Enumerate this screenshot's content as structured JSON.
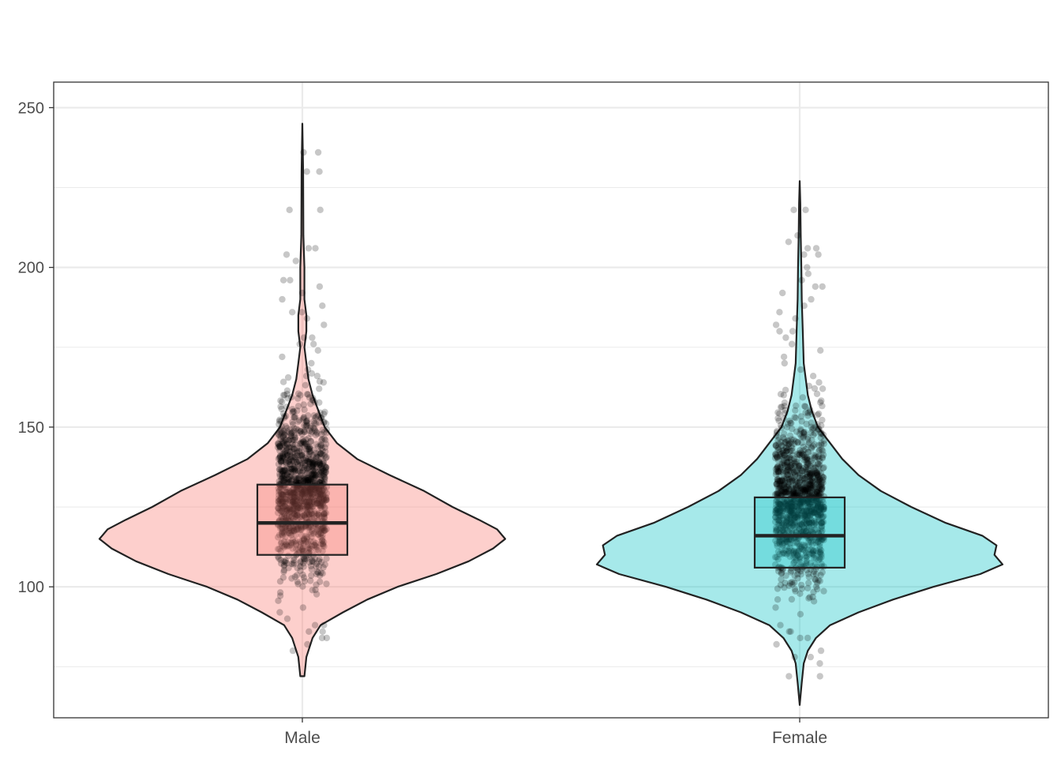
{
  "chart_data": {
    "type": "violin",
    "title": "",
    "xlabel": "",
    "ylabel": "",
    "ylim": [
      59,
      258
    ],
    "yticks": [
      100,
      150,
      200,
      250
    ],
    "grid": true,
    "legend": "none",
    "categories": [
      "Male",
      "Female"
    ],
    "groups": [
      {
        "name": "Male",
        "fill": "#f8766d",
        "range": [
          72,
          245
        ],
        "box": {
          "q1": 110,
          "median": 120,
          "q3": 132
        },
        "density": [
          [
            72,
            0.01
          ],
          [
            78,
            0.02
          ],
          [
            84,
            0.05
          ],
          [
            88,
            0.09
          ],
          [
            92,
            0.2
          ],
          [
            96,
            0.32
          ],
          [
            100,
            0.47
          ],
          [
            104,
            0.66
          ],
          [
            108,
            0.82
          ],
          [
            112,
            0.94
          ],
          [
            115,
            1.0
          ],
          [
            118,
            0.96
          ],
          [
            121,
            0.87
          ],
          [
            125,
            0.74
          ],
          [
            130,
            0.6
          ],
          [
            135,
            0.43
          ],
          [
            140,
            0.27
          ],
          [
            145,
            0.17
          ],
          [
            150,
            0.11
          ],
          [
            155,
            0.08
          ],
          [
            160,
            0.05
          ],
          [
            165,
            0.03
          ],
          [
            170,
            0.02
          ],
          [
            175,
            0.01
          ],
          [
            180,
            0.02
          ],
          [
            185,
            0.02
          ],
          [
            190,
            0.01
          ],
          [
            200,
            0.01
          ],
          [
            210,
            0.005
          ],
          [
            230,
            0.004
          ],
          [
            245,
            0.0
          ]
        ],
        "outlier_points": [
          236,
          236,
          230,
          230,
          218,
          218,
          206,
          206,
          204,
          202,
          196,
          196,
          194,
          192,
          190,
          188,
          186,
          186,
          184,
          182,
          178,
          178,
          176,
          176,
          174,
          172,
          170,
          168,
          166,
          164,
          162,
          160,
          92,
          90,
          88,
          88,
          86,
          86,
          84,
          84,
          82,
          80
        ]
      },
      {
        "name": "Female",
        "fill": "#00bfc4",
        "range": [
          63,
          227
        ],
        "box": {
          "q1": 106,
          "median": 116,
          "q3": 128
        },
        "density": [
          [
            63,
            0.0
          ],
          [
            70,
            0.01
          ],
          [
            76,
            0.02
          ],
          [
            80,
            0.04
          ],
          [
            84,
            0.08
          ],
          [
            88,
            0.15
          ],
          [
            92,
            0.29
          ],
          [
            96,
            0.46
          ],
          [
            100,
            0.66
          ],
          [
            104,
            0.89
          ],
          [
            107,
            1.0
          ],
          [
            110,
            0.96
          ],
          [
            113,
            0.97
          ],
          [
            116,
            0.9
          ],
          [
            120,
            0.72
          ],
          [
            125,
            0.55
          ],
          [
            130,
            0.4
          ],
          [
            135,
            0.29
          ],
          [
            140,
            0.21
          ],
          [
            145,
            0.15
          ],
          [
            150,
            0.09
          ],
          [
            155,
            0.06
          ],
          [
            160,
            0.04
          ],
          [
            165,
            0.03
          ],
          [
            170,
            0.02
          ],
          [
            180,
            0.015
          ],
          [
            190,
            0.01
          ],
          [
            200,
            0.008
          ],
          [
            210,
            0.005
          ],
          [
            220,
            0.003
          ],
          [
            227,
            0.0
          ]
        ],
        "outlier_points": [
          218,
          218,
          210,
          208,
          206,
          206,
          204,
          204,
          200,
          198,
          196,
          194,
          194,
          192,
          190,
          188,
          186,
          184,
          182,
          180,
          180,
          178,
          176,
          174,
          172,
          170,
          168,
          166,
          164,
          162,
          160,
          88,
          86,
          86,
          84,
          84,
          82,
          80,
          78,
          78,
          76,
          72,
          72
        ]
      }
    ]
  }
}
